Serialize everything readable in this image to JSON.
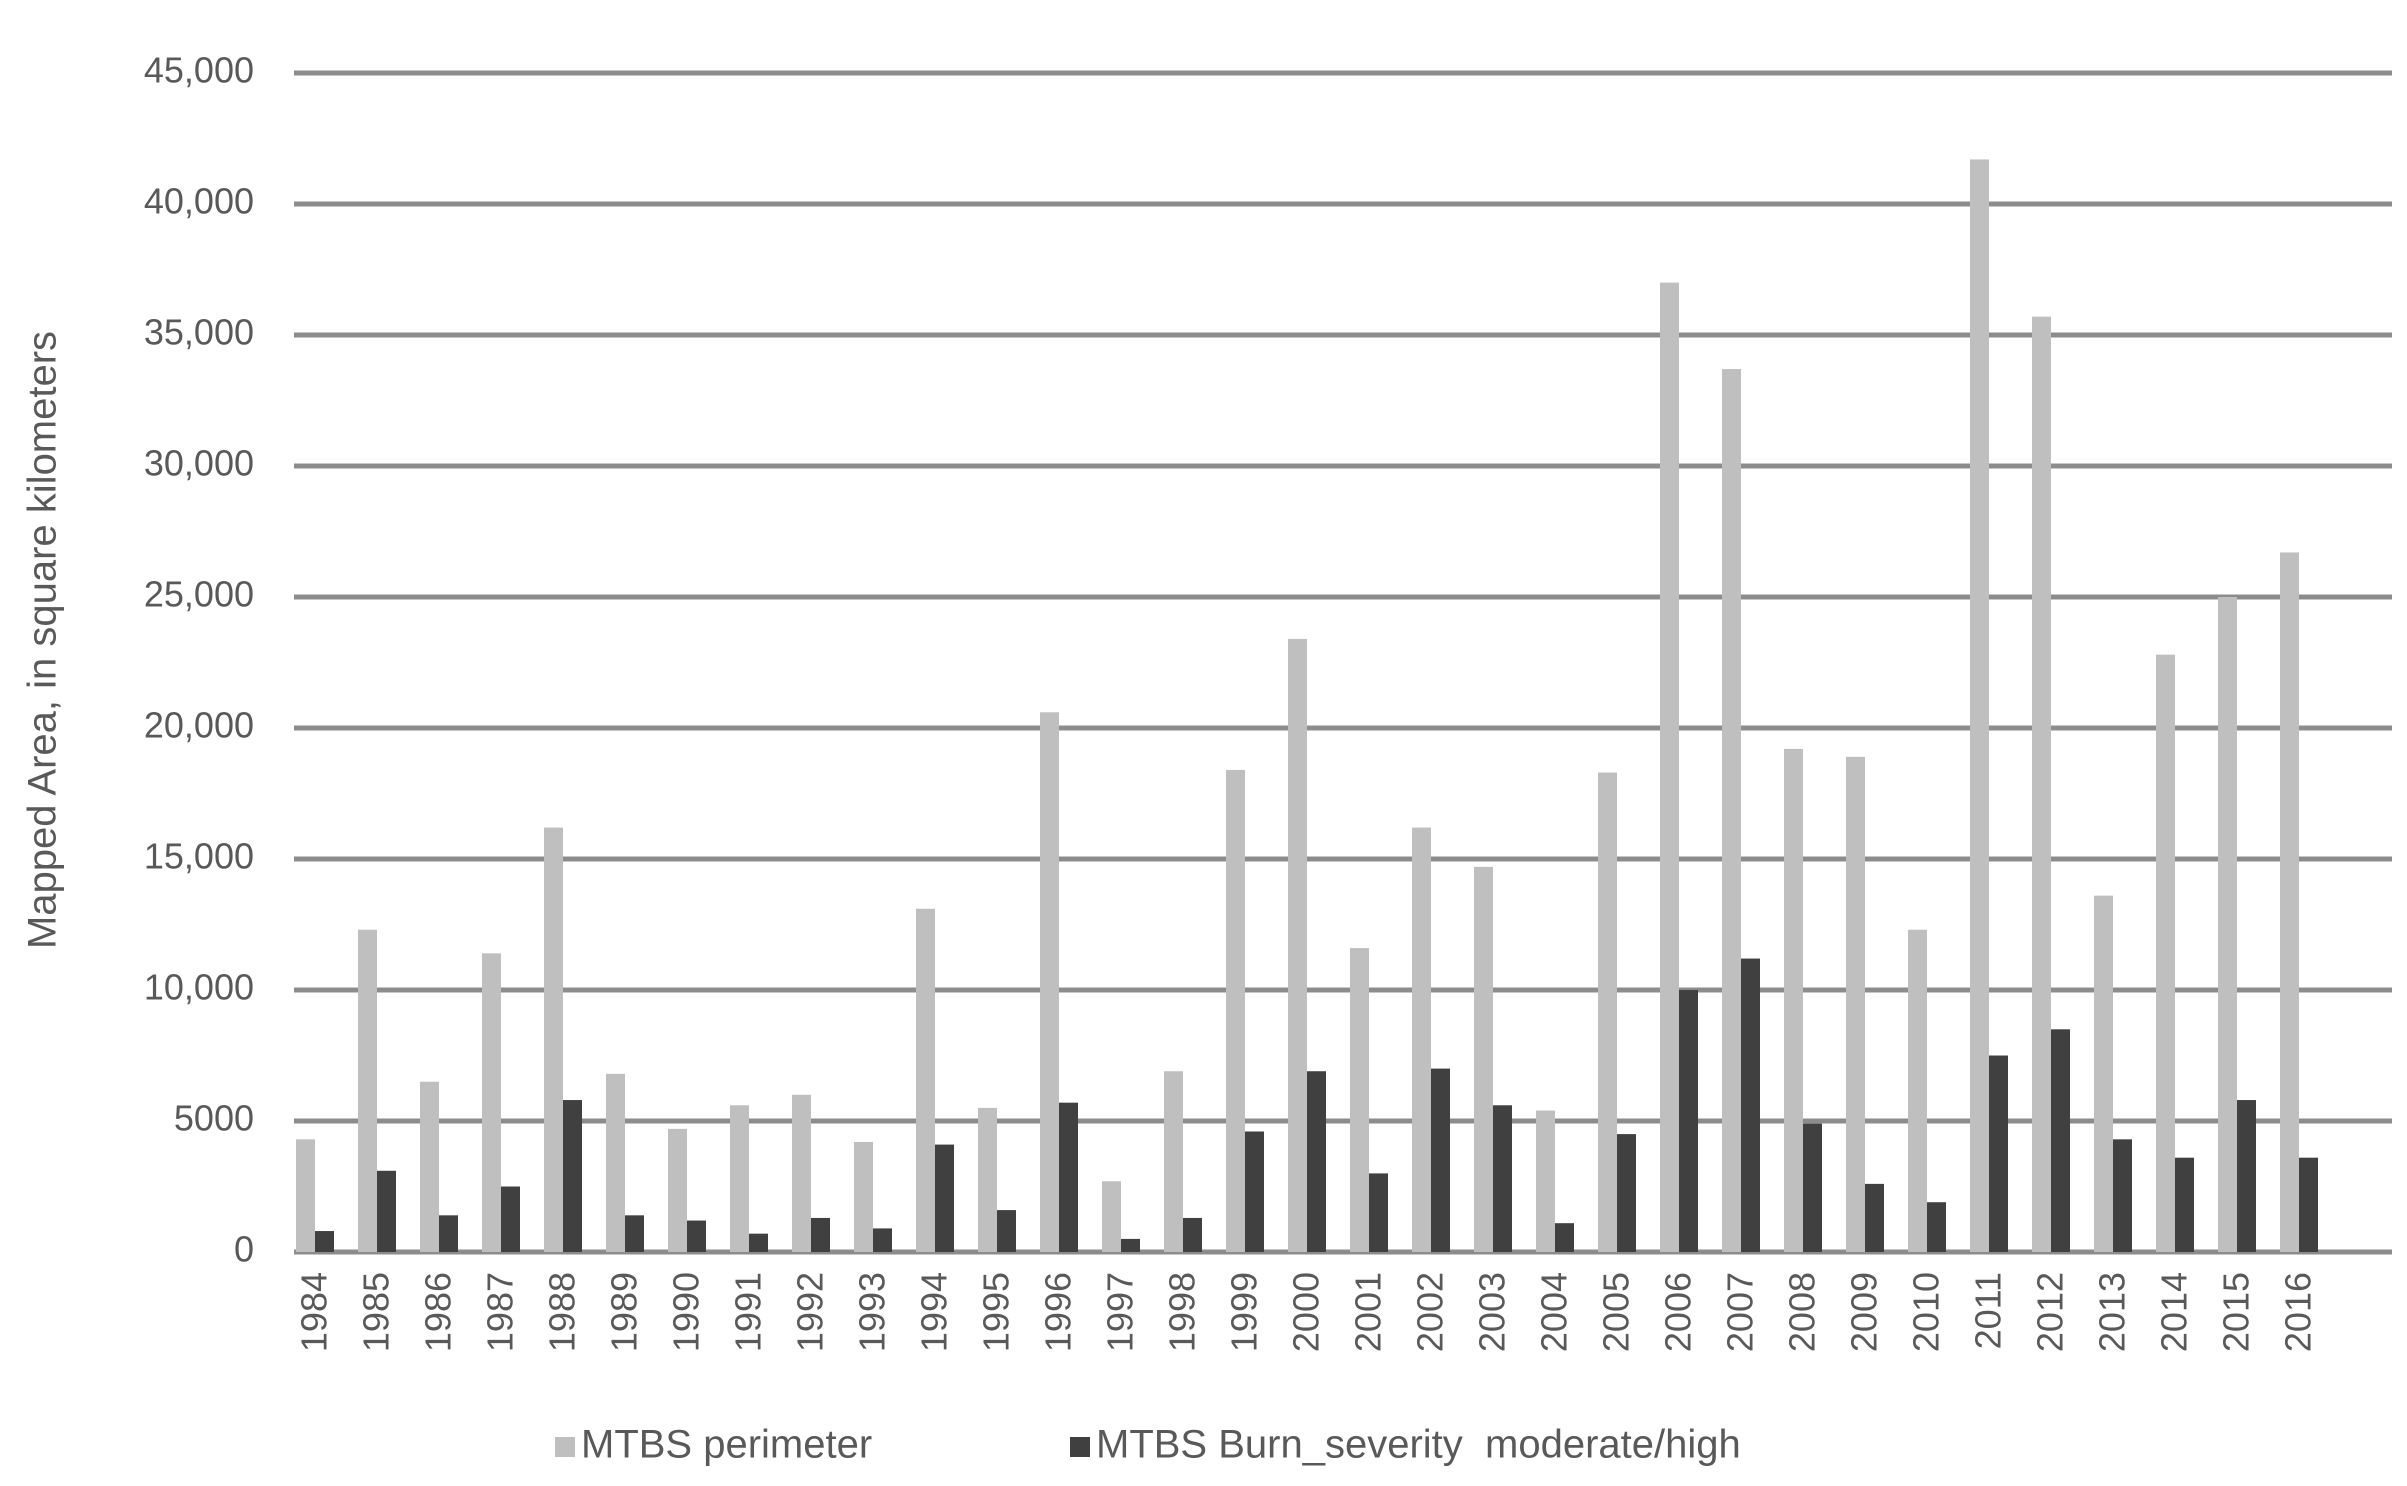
{
  "chart_data": {
    "type": "bar",
    "ylabel": "Mapped Area, in square kilometers",
    "categories": [
      "1984",
      "1985",
      "1986",
      "1987",
      "1988",
      "1989",
      "1990",
      "1991",
      "1992",
      "1993",
      "1994",
      "1995",
      "1996",
      "1997",
      "1998",
      "1999",
      "2000",
      "2001",
      "2002",
      "2003",
      "2004",
      "2005",
      "2006",
      "2007",
      "2008",
      "2009",
      "2010",
      "2011",
      "2012",
      "2013",
      "2014",
      "2015",
      "2016"
    ],
    "series": [
      {
        "name": "MTBS perimeter",
        "color": "#bfbfbf",
        "values": [
          4300,
          12300,
          6500,
          11400,
          16200,
          6800,
          4700,
          5600,
          6000,
          4200,
          13100,
          5500,
          20600,
          2700,
          6900,
          18400,
          23400,
          11600,
          16200,
          14700,
          5400,
          18300,
          37000,
          33700,
          19200,
          18900,
          12300,
          41700,
          35700,
          13600,
          22800,
          25000,
          26700
        ]
      },
      {
        "name": "MTBS Burn_severity  moderate/high",
        "color": "#404040",
        "values": [
          800,
          3100,
          1400,
          2500,
          5800,
          1400,
          1200,
          700,
          1300,
          900,
          4100,
          1600,
          5700,
          500,
          1300,
          4600,
          6900,
          3000,
          7000,
          5600,
          1100,
          4500,
          10000,
          11200,
          4900,
          2600,
          1900,
          7500,
          8500,
          4300,
          3600,
          5800,
          3600
        ]
      }
    ],
    "ylim": [
      0,
      45000
    ],
    "yticks": [
      0,
      5000,
      {
        "value": 10000,
        "label": "10,000"
      },
      {
        "value": 15000,
        "label": "15,000"
      },
      {
        "value": 20000,
        "label": "20,000"
      },
      {
        "value": 25000,
        "label": "25,000"
      },
      {
        "value": 30000,
        "label": "30,000"
      },
      {
        "value": 35000,
        "label": "35,000"
      },
      {
        "value": 40000,
        "label": "40,000"
      },
      {
        "value": 45000,
        "label": "45,000"
      }
    ],
    "grid": true,
    "legend": "bottom"
  }
}
